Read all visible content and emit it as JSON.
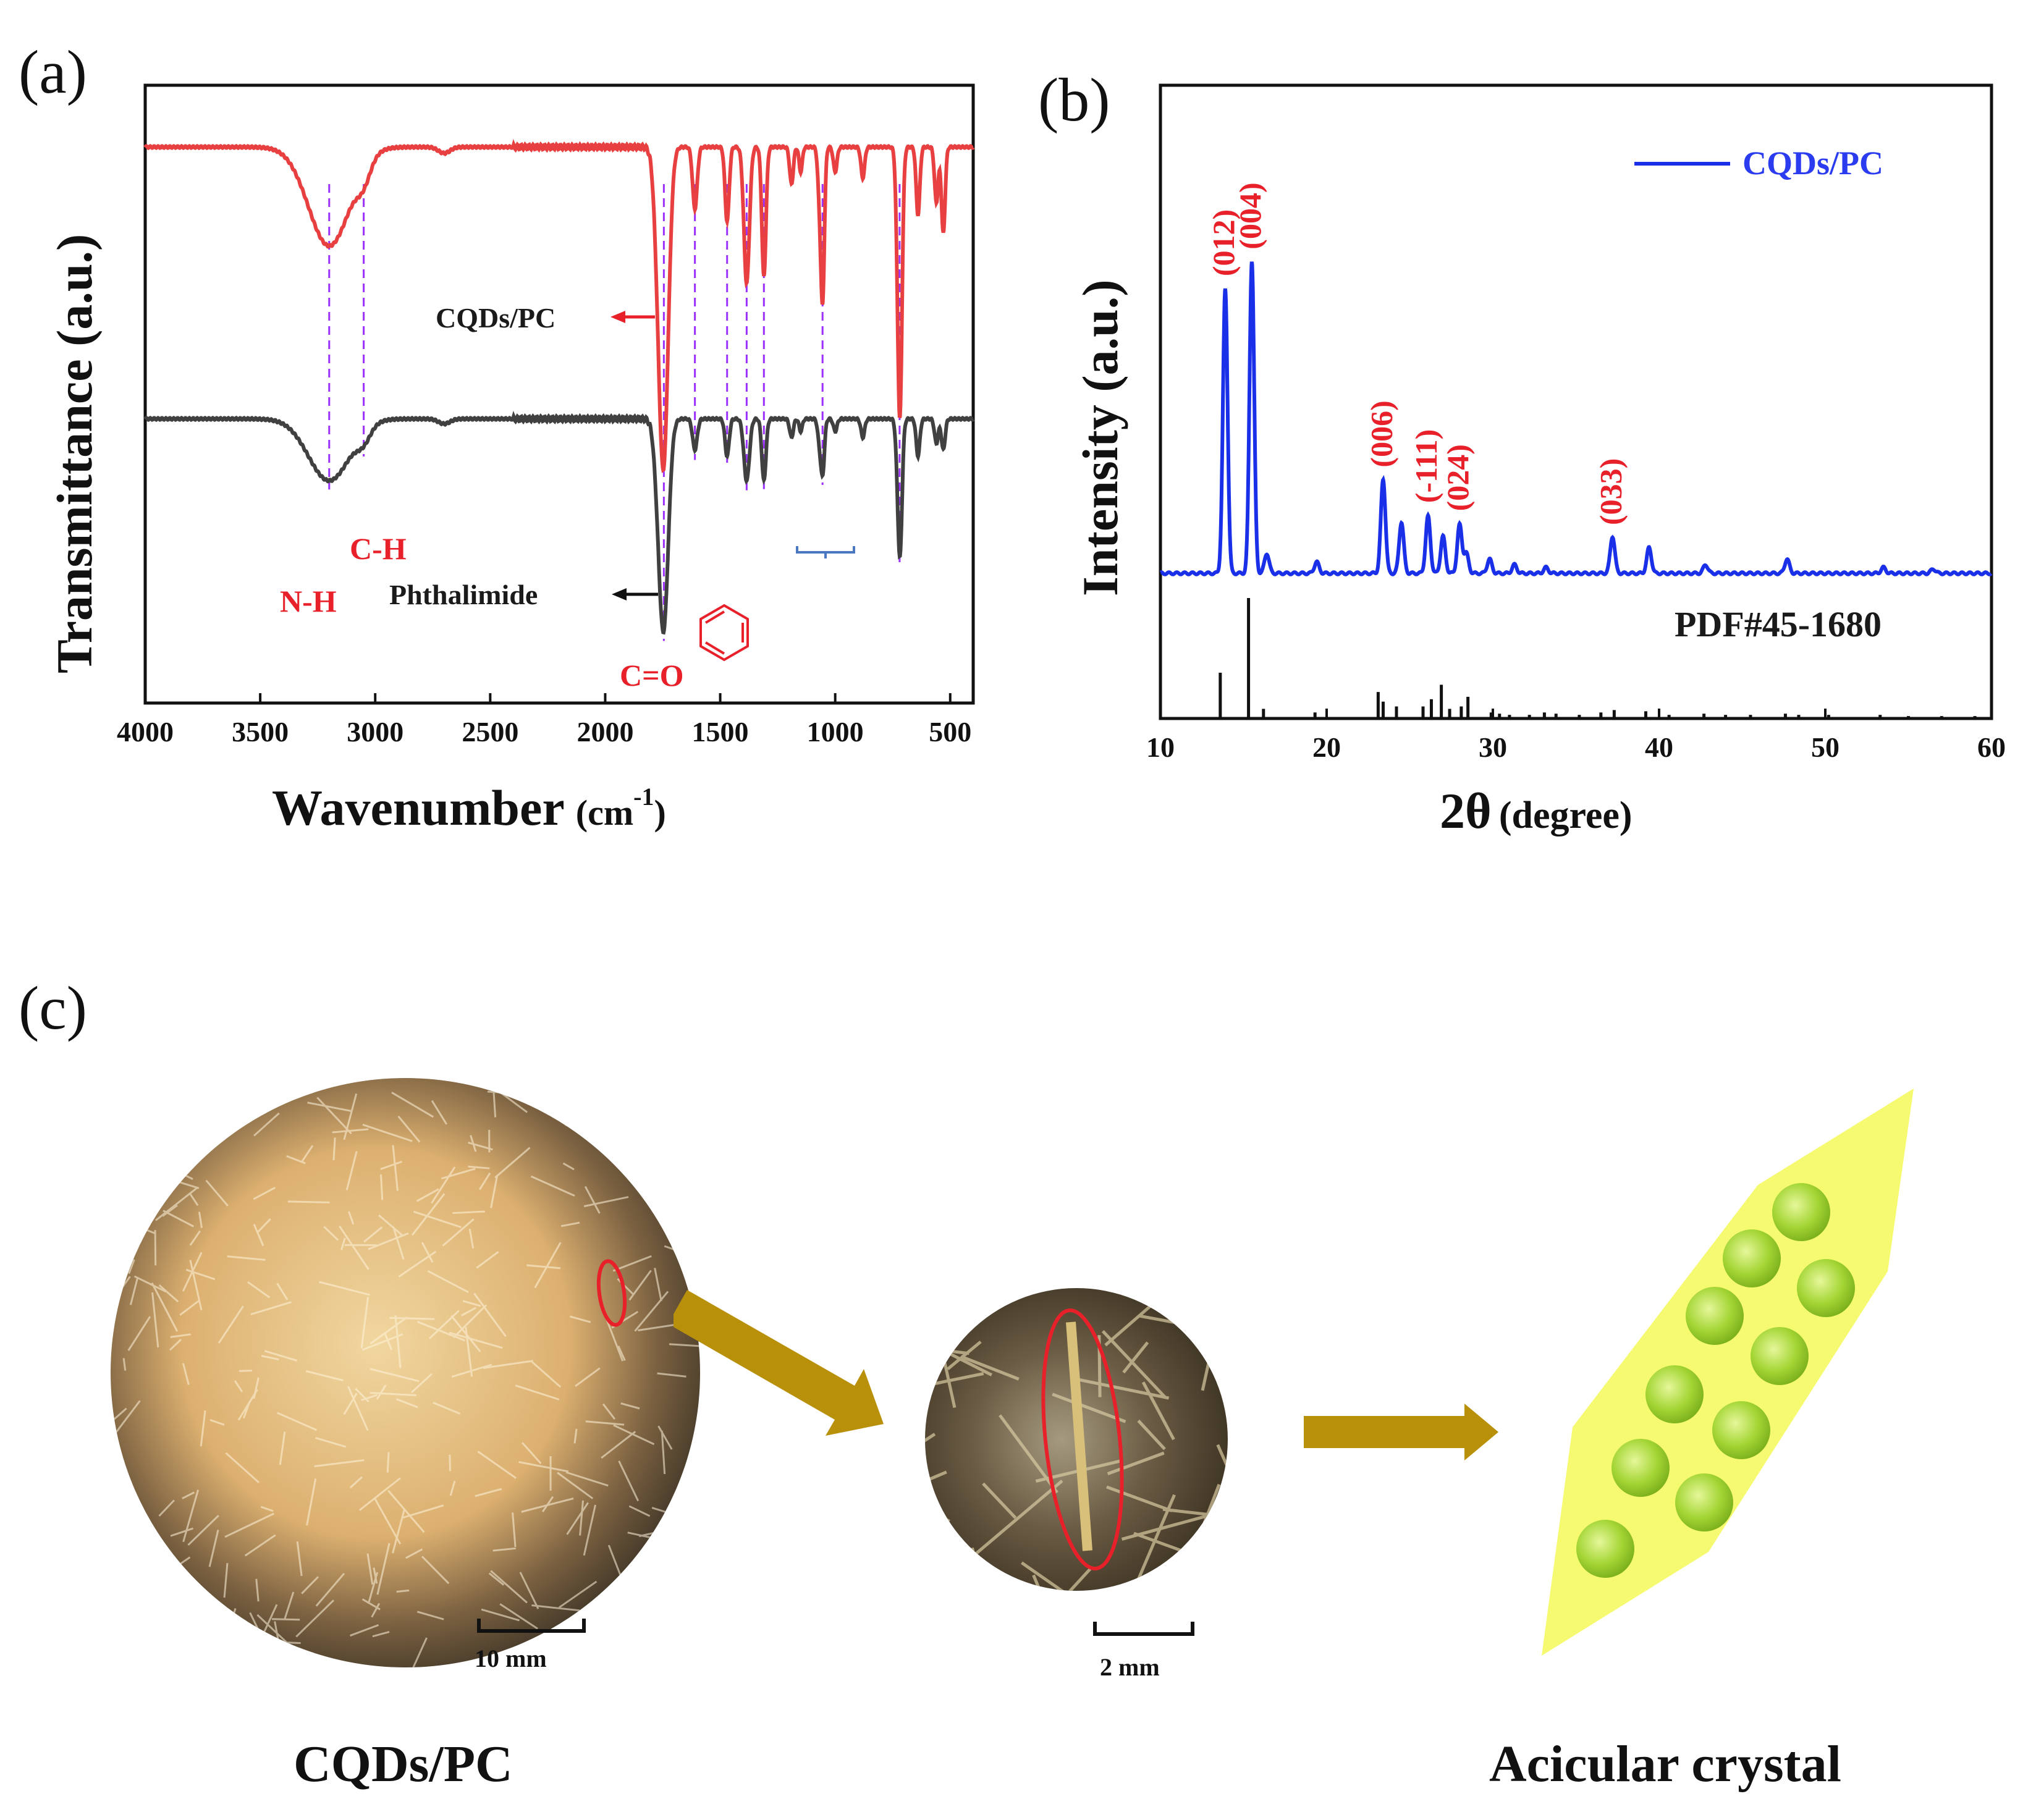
{
  "panels": {
    "a": {
      "letter": "(a)"
    },
    "b": {
      "letter": "(b)"
    },
    "c": {
      "letter": "(c)"
    }
  },
  "chart_data": [
    {
      "type": "line",
      "id": "ftir",
      "title": "",
      "xlabel": "Wavenumber",
      "xlabel_unit": "(cm",
      "xlabel_sup": "-1",
      "xlabel_close": ")",
      "ylabel": "Transmittance (a.u.)",
      "xlim": [
        4000,
        400
      ],
      "x_reversed": true,
      "ylim": [
        0,
        1
      ],
      "xticks": [
        4000,
        3500,
        3000,
        2500,
        2000,
        1500,
        1000,
        500
      ],
      "series": [
        {
          "name": "CQDs/PC",
          "color": "#e84040",
          "offset": 0.9,
          "peaks": [
            [
              3200,
              0.16,
              90
            ],
            [
              3050,
              0.03,
              30
            ],
            [
              2700,
              0.01,
              25
            ],
            [
              1770,
              0.1,
              18
            ],
            [
              1745,
              0.48,
              20
            ],
            [
              1610,
              0.1,
              10
            ],
            [
              1470,
              0.12,
              9
            ],
            [
              1385,
              0.22,
              12
            ],
            [
              1310,
              0.21,
              9
            ],
            [
              1190,
              0.06,
              8
            ],
            [
              1150,
              0.04,
              7
            ],
            [
              1070,
              0.06,
              7
            ],
            [
              1055,
              0.25,
              8
            ],
            [
              1000,
              0.04,
              8
            ],
            [
              880,
              0.05,
              8
            ],
            [
              720,
              0.4,
              10
            ],
            [
              715,
              0.05,
              7
            ],
            [
              640,
              0.11,
              8
            ],
            [
              560,
              0.09,
              8
            ],
            [
              530,
              0.14,
              8
            ]
          ]
        },
        {
          "name": "Phthalimide",
          "color": "#404040",
          "offset": 0.46,
          "peaks": [
            [
              3200,
              0.1,
              90
            ],
            [
              3050,
              0.02,
              30
            ],
            [
              2700,
              0.008,
              25
            ],
            [
              1770,
              0.06,
              18
            ],
            [
              1745,
              0.32,
              20
            ],
            [
              1610,
              0.05,
              10
            ],
            [
              1470,
              0.06,
              9
            ],
            [
              1385,
              0.1,
              12
            ],
            [
              1310,
              0.1,
              9
            ],
            [
              1190,
              0.03,
              8
            ],
            [
              1150,
              0.02,
              7
            ],
            [
              1070,
              0.03,
              7
            ],
            [
              1055,
              0.09,
              8
            ],
            [
              1000,
              0.02,
              8
            ],
            [
              880,
              0.03,
              8
            ],
            [
              720,
              0.2,
              10
            ],
            [
              715,
              0.03,
              7
            ],
            [
              640,
              0.06,
              8
            ],
            [
              560,
              0.04,
              8
            ],
            [
              530,
              0.05,
              8
            ]
          ]
        }
      ],
      "guide_lines": [
        3200,
        3050,
        1745,
        1610,
        1470,
        1385,
        1310,
        1055,
        720
      ],
      "annotations": {
        "nh": "N-H",
        "ch": "C-H",
        "co": "C=O",
        "cqds_label": "CQDs/PC",
        "phth_label": "Phthalimide"
      },
      "colors": {
        "guide": "#9b30ff",
        "red": "#e8202a",
        "black_series": "#404040",
        "red_series": "#e84040",
        "bracket": "#4a78c0"
      }
    },
    {
      "type": "line",
      "id": "xrd",
      "title": "",
      "xlabel": "2θ",
      "xlabel_unit": "(degree)",
      "ylabel": "Intensity (a.u.)",
      "xlim": [
        10,
        60
      ],
      "xticks": [
        10,
        20,
        30,
        40,
        50,
        60
      ],
      "legend": {
        "label": "CQDs/PC",
        "position": "top-right"
      },
      "reference_label": "PDF#45-1680",
      "series": [
        {
          "name": "CQDs/PC",
          "color": "#1a2fe8",
          "peaks": [
            [
              13.9,
              1.0
            ],
            [
              15.5,
              1.1
            ],
            [
              16.4,
              0.07
            ],
            [
              19.4,
              0.04
            ],
            [
              23.4,
              0.33
            ],
            [
              24.5,
              0.18
            ],
            [
              26.1,
              0.2
            ],
            [
              27.0,
              0.13
            ],
            [
              28.0,
              0.17
            ],
            [
              28.4,
              0.07
            ],
            [
              29.8,
              0.05
            ],
            [
              31.3,
              0.03
            ],
            [
              33.2,
              0.02
            ],
            [
              37.2,
              0.13
            ],
            [
              39.4,
              0.09
            ],
            [
              42.8,
              0.03
            ],
            [
              47.7,
              0.05
            ],
            [
              53.5,
              0.02
            ],
            [
              56.5,
              0.015
            ]
          ]
        }
      ],
      "peak_labels": [
        {
          "hkl": "(012)",
          "x": 13.9
        },
        {
          "hkl": "(004)",
          "x": 15.5
        },
        {
          "hkl": "(006)",
          "x": 23.4
        },
        {
          "hkl": "(-111)",
          "x": 26.1
        },
        {
          "hkl": "(024)",
          "x": 28.0
        },
        {
          "hkl": "(033)",
          "x": 37.2
        }
      ],
      "reference_sticks": [
        [
          13.6,
          0.38
        ],
        [
          15.3,
          1.0
        ],
        [
          16.2,
          0.08
        ],
        [
          19.3,
          0.05
        ],
        [
          23.1,
          0.22
        ],
        [
          23.4,
          0.14
        ],
        [
          24.2,
          0.1
        ],
        [
          25.8,
          0.1
        ],
        [
          26.3,
          0.16
        ],
        [
          26.9,
          0.28
        ],
        [
          27.4,
          0.08
        ],
        [
          28.1,
          0.1
        ],
        [
          28.5,
          0.18
        ],
        [
          29.9,
          0.05
        ],
        [
          30.4,
          0.04
        ],
        [
          31.0,
          0.03
        ],
        [
          32.2,
          0.03
        ],
        [
          33.1,
          0.05
        ],
        [
          33.8,
          0.04
        ],
        [
          35.2,
          0.03
        ],
        [
          36.5,
          0.05
        ],
        [
          37.3,
          0.07
        ],
        [
          39.2,
          0.06
        ],
        [
          40.6,
          0.03
        ],
        [
          42.7,
          0.04
        ],
        [
          44.0,
          0.03
        ],
        [
          45.5,
          0.03
        ],
        [
          47.6,
          0.04
        ],
        [
          48.4,
          0.03
        ],
        [
          50.2,
          0.03
        ],
        [
          53.3,
          0.03
        ],
        [
          55.0,
          0.02
        ],
        [
          57.0,
          0.02
        ],
        [
          59.0,
          0.02
        ]
      ],
      "colors": {
        "series": "#1a2fe8",
        "label": "#e8202a",
        "sticks": "#111111"
      }
    }
  ],
  "panel_c": {
    "scale1": "10 mm",
    "scale2": "2 mm",
    "caption_left": "CQDs/PC",
    "caption_right": "Acicular crystal",
    "colors": {
      "arrow": "#b8900a",
      "crystal": "#f6fa70",
      "dot": "#9ccf2e",
      "ellipse": "#e8202a"
    }
  }
}
